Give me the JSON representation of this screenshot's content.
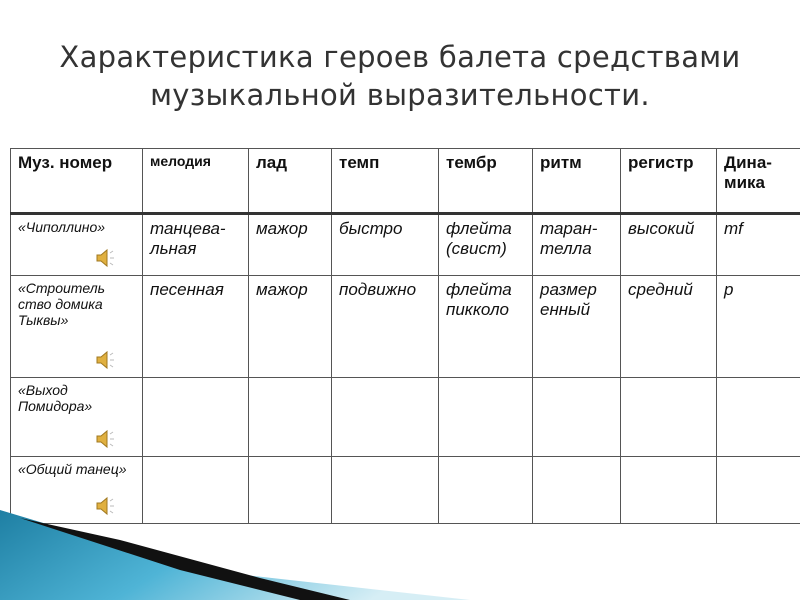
{
  "title_lines": [
    "Характеристика героев балета средствами",
    "музыкальной выразительности."
  ],
  "table": {
    "headers": [
      "Муз. номер",
      "мелодия",
      "лад",
      "темп",
      "тембр",
      "ритм",
      "регистр",
      "Дина-мика"
    ],
    "rows": [
      {
        "name": "«Чиполлино»",
        "cells": [
          "танцева-льная",
          "мажор",
          "быстро",
          "флейта (свист)",
          "таран-телла",
          "высокий",
          "mf"
        ]
      },
      {
        "name": "«Строитель ство домика Тыквы»",
        "cells": [
          "песенная",
          "мажор",
          "подвижно",
          "флейта пикколо",
          "размер енный",
          "средний",
          "p"
        ]
      },
      {
        "name": "«Выход Помидора»",
        "cells": [
          "",
          "",
          "",
          "",
          "",
          "",
          ""
        ]
      },
      {
        "name": "«Общий танец»",
        "cells": [
          "",
          "",
          "",
          "",
          "",
          "",
          ""
        ]
      }
    ]
  },
  "icons": {
    "audio": "speaker-sound-icon"
  },
  "colors": {
    "accent": "#2a9cc0",
    "dark": "#111111"
  }
}
